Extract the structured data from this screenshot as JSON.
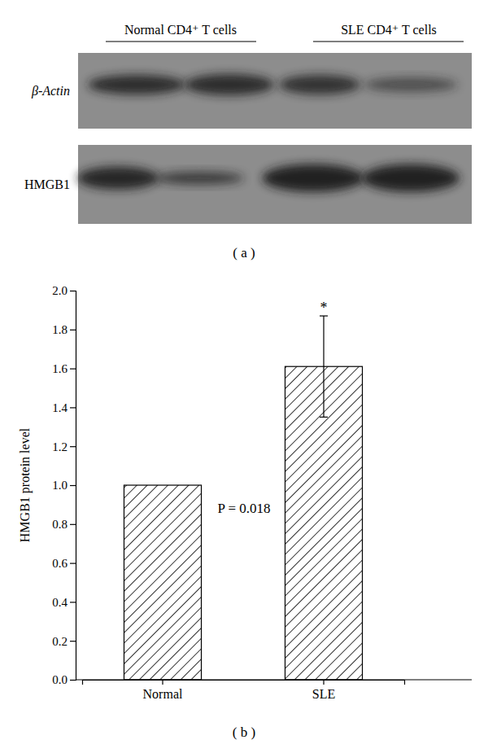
{
  "blot": {
    "lane_groups": [
      "Normal CD4⁺ T cells",
      "SLE CD4⁺ T cells"
    ],
    "rows": [
      "β-Actin",
      "HMGB1"
    ],
    "caption": "( a )"
  },
  "chart_data": {
    "type": "bar",
    "categories": [
      "Normal",
      "SLE"
    ],
    "values": [
      1.0,
      1.61
    ],
    "errors": [
      null,
      0.26
    ],
    "y_label": "HMGB1 protein level",
    "annotations": [
      "P = 0.018",
      "*"
    ],
    "caption": "( b )",
    "ylim": [
      0,
      2.0
    ],
    "yticks": [
      {
        "value": 0,
        "label": "0.0"
      },
      0.2,
      0.4,
      0.6,
      0.8,
      {
        "value": 1,
        "label": "1.0"
      },
      1.2,
      1.4,
      1.6,
      1.8,
      {
        "value": 2,
        "label": "2.0"
      }
    ],
    "color": "#000000",
    "grid": false
  }
}
